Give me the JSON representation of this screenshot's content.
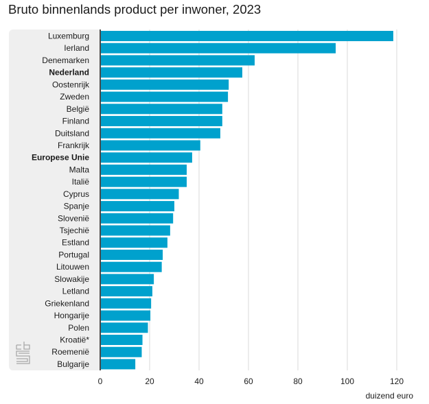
{
  "chart_data": {
    "type": "bar",
    "orientation": "horizontal",
    "title": "Bruto binnenlands product per inwoner, 2023",
    "xlabel": "duizend euro",
    "ylabel": "",
    "xlim": [
      0,
      125
    ],
    "xticks": [
      0,
      20,
      40,
      60,
      80,
      100,
      120
    ],
    "grid": true,
    "color": "#00a1cd",
    "categories": [
      "Luxemburg",
      "Ierland",
      "Denemarken",
      "Nederland",
      "Oostenrijk",
      "Zweden",
      "België",
      "Finland",
      "Duitsland",
      "Frankrijk",
      "Europese Unie",
      "Malta",
      "Italië",
      "Cyprus",
      "Spanje",
      "Slovenië",
      "Tsjechië",
      "Estland",
      "Portugal",
      "Litouwen",
      "Slowakije",
      "Letland",
      "Griekenland",
      "Hongarije",
      "Polen",
      "Kroatië*",
      "Roemenië",
      "Bulgarije"
    ],
    "bold_categories": [
      "Nederland",
      "Europese Unie"
    ],
    "values": [
      118.6,
      95.3,
      62.5,
      57.5,
      52.0,
      51.7,
      49.4,
      49.4,
      48.6,
      40.5,
      37.2,
      35.0,
      35.0,
      31.8,
      30.0,
      29.5,
      28.3,
      27.2,
      25.3,
      24.9,
      21.7,
      21.1,
      20.6,
      20.3,
      19.3,
      17.1,
      16.8,
      14.2
    ]
  },
  "logo": {
    "name": "cbs-logo"
  }
}
